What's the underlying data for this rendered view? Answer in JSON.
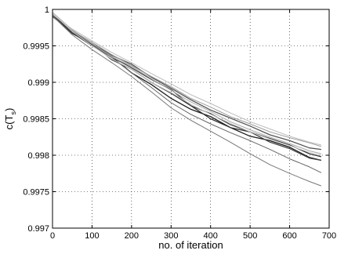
{
  "chart_data": {
    "type": "line",
    "title": "",
    "xlabel": "no. of iteration",
    "ylabel_main": "c(T",
    "ylabel_sub": "s",
    "ylabel_tail": ")",
    "xlim": [
      0,
      700
    ],
    "ylim": [
      0.997,
      1.0
    ],
    "xticks": [
      0,
      100,
      200,
      300,
      400,
      500,
      600,
      700
    ],
    "yticks": [
      0.997,
      0.9975,
      0.998,
      0.9985,
      0.999,
      0.9995,
      1.0
    ],
    "xtick_labels": [
      "0",
      "100",
      "200",
      "300",
      "400",
      "500",
      "600",
      "700"
    ],
    "ytick_labels": [
      "0.997",
      "0.9975",
      "0.998",
      "0.9985",
      "0.999",
      "0.9995",
      "1"
    ],
    "grid": true,
    "series": [
      {
        "color": "#1a1a1a",
        "x": [
          0,
          50,
          100,
          150,
          200,
          250,
          300,
          350,
          400,
          450,
          500,
          550,
          600,
          650,
          680
        ],
        "y": [
          0.99992,
          0.99967,
          0.99952,
          0.99935,
          0.99913,
          0.99897,
          0.99878,
          0.99863,
          0.99853,
          0.99838,
          0.99826,
          0.9982,
          0.99811,
          0.99797,
          0.99793
        ]
      },
      {
        "color": "#333333",
        "x": [
          0,
          50,
          100,
          150,
          200,
          250,
          300,
          350,
          400,
          450,
          500,
          550,
          600,
          650,
          680
        ],
        "y": [
          0.99995,
          0.99968,
          0.99953,
          0.99931,
          0.99918,
          0.999,
          0.99885,
          0.99868,
          0.9985,
          0.99838,
          0.99832,
          0.99823,
          0.99814,
          0.99802,
          0.99798
        ]
      },
      {
        "color": "#555555",
        "x": [
          0,
          50,
          100,
          150,
          200,
          250,
          300,
          350,
          400,
          450,
          500,
          550,
          600,
          650,
          680
        ],
        "y": [
          0.9999,
          0.9997,
          0.99953,
          0.99937,
          0.99925,
          0.99907,
          0.99892,
          0.99876,
          0.99862,
          0.99851,
          0.9984,
          0.99828,
          0.9982,
          0.9981,
          0.99808
        ]
      },
      {
        "color": "#444444",
        "x": [
          0,
          50,
          100,
          150,
          200,
          250,
          300,
          350,
          400,
          450,
          500,
          550,
          600,
          650,
          680
        ],
        "y": [
          0.99993,
          0.99968,
          0.9995,
          0.99935,
          0.9992,
          0.99904,
          0.9989,
          0.99868,
          0.99857,
          0.99842,
          0.99832,
          0.99818,
          0.99809,
          0.99796,
          0.99793
        ]
      },
      {
        "color": "#666666",
        "x": [
          0,
          50,
          100,
          150,
          200,
          250,
          300,
          350,
          400,
          450,
          500,
          550,
          600,
          650,
          680
        ],
        "y": [
          0.99994,
          0.9997,
          0.99951,
          0.99934,
          0.99913,
          0.99893,
          0.99872,
          0.99856,
          0.99843,
          0.99831,
          0.9982,
          0.99808,
          0.99795,
          0.99784,
          0.99776
        ]
      },
      {
        "color": "#777777",
        "x": [
          0,
          50,
          100,
          150,
          200,
          250,
          300,
          350,
          400,
          450,
          500,
          550,
          600,
          650,
          680
        ],
        "y": [
          0.99991,
          0.99965,
          0.99945,
          0.99927,
          0.99908,
          0.99887,
          0.99865,
          0.99848,
          0.99833,
          0.99818,
          0.99802,
          0.99787,
          0.99775,
          0.99764,
          0.99758
        ]
      },
      {
        "color": "#999999",
        "x": [
          0,
          50,
          100,
          150,
          200,
          250,
          300,
          350,
          400,
          450,
          500,
          550,
          600,
          650,
          680
        ],
        "y": [
          0.99994,
          0.99971,
          0.99955,
          0.99938,
          0.99923,
          0.99908,
          0.99894,
          0.99878,
          0.99866,
          0.99853,
          0.99843,
          0.99832,
          0.99824,
          0.99817,
          0.99812
        ]
      },
      {
        "color": "#aaaaaa",
        "x": [
          0,
          50,
          100,
          150,
          200,
          250,
          300,
          350,
          400,
          450,
          500,
          550,
          600,
          650,
          680
        ],
        "y": [
          0.99996,
          0.99972,
          0.99953,
          0.99935,
          0.99922,
          0.99905,
          0.99889,
          0.99873,
          0.9986,
          0.99846,
          0.99835,
          0.99825,
          0.99816,
          0.99806,
          0.99802
        ]
      },
      {
        "color": "#bbbbbb",
        "x": [
          0,
          50,
          100,
          150,
          200,
          250,
          300,
          350,
          400,
          450,
          500,
          550,
          600,
          650,
          680
        ],
        "y": [
          0.99993,
          0.99973,
          0.99957,
          0.99941,
          0.99927,
          0.99912,
          0.99898,
          0.99883,
          0.99871,
          0.99858,
          0.99846,
          0.99836,
          0.99826,
          0.99818,
          0.99814
        ]
      },
      {
        "color": "#cccccc",
        "x": [
          0,
          50,
          100,
          150,
          200,
          250,
          300,
          350,
          400,
          450,
          500,
          550,
          600,
          650,
          680
        ],
        "y": [
          0.99995,
          0.9997,
          0.9995,
          0.99932,
          0.99918,
          0.999,
          0.99886,
          0.9987,
          0.99856,
          0.99844,
          0.99832,
          0.99822,
          0.99813,
          0.99804,
          0.998
        ]
      }
    ]
  }
}
